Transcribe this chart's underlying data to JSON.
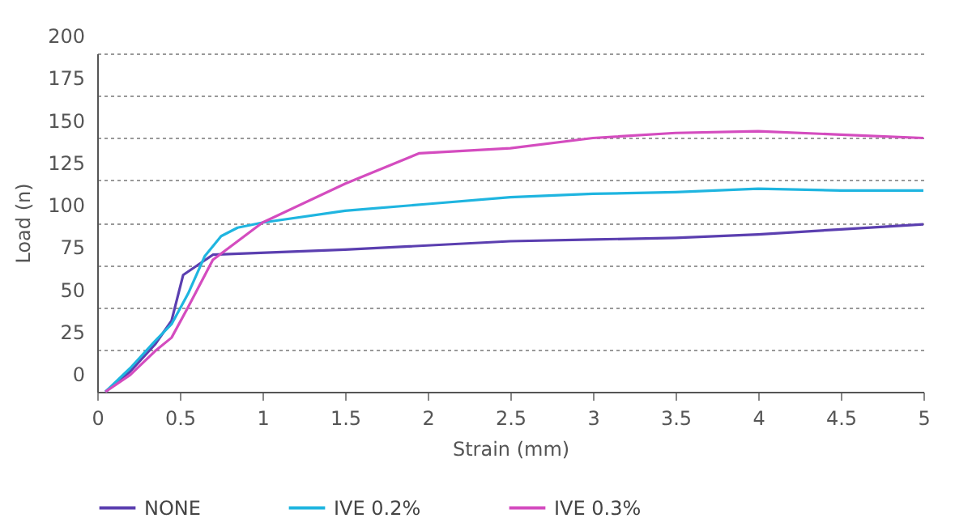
{
  "chart_data": {
    "type": "line",
    "xlabel": "Strain (mm)",
    "ylabel": "Load (n)",
    "xlim": [
      0,
      5
    ],
    "xticks": [
      0,
      0.5,
      1,
      1.5,
      2,
      2.5,
      3,
      3.5,
      4,
      4.5,
      5
    ],
    "ylim": [
      0,
      200
    ],
    "yticks": [
      0,
      25,
      50,
      75,
      100,
      125,
      150,
      175,
      200
    ],
    "grid": "y",
    "legend": "bottom",
    "marker": "none",
    "line_style": "solid",
    "series": [
      {
        "name": "NONE",
        "color": "#5b3fb0",
        "x": [
          0.05,
          0.2,
          0.35,
          0.45,
          0.52,
          0.7,
          1.5,
          2.5,
          3,
          3.5,
          4,
          4.5,
          5
        ],
        "values": [
          0,
          12,
          28,
          42,
          69,
          81,
          84,
          89,
          90,
          91,
          93,
          96,
          99
        ]
      },
      {
        "name": "IVE 0.2%",
        "color": "#1fb5e0",
        "x": [
          0.05,
          0.2,
          0.35,
          0.45,
          0.55,
          0.65,
          0.75,
          0.85,
          1,
          1.5,
          2,
          2.5,
          3,
          3.5,
          4,
          4.5,
          5
        ],
        "values": [
          0,
          14,
          30,
          40,
          58,
          80,
          92,
          97,
          100,
          107,
          111,
          115,
          117,
          118,
          120,
          119,
          119
        ]
      },
      {
        "name": "IVE 0.3%",
        "color": "#d44cbf",
        "x": [
          0.05,
          0.2,
          0.35,
          0.45,
          0.55,
          0.7,
          1,
          1.5,
          1.95,
          2.5,
          3,
          3.5,
          4,
          4.5,
          5
        ],
        "values": [
          0,
          10,
          24,
          32,
          50,
          78,
          100,
          123,
          141,
          144,
          150,
          153,
          154,
          152,
          150
        ]
      }
    ]
  }
}
